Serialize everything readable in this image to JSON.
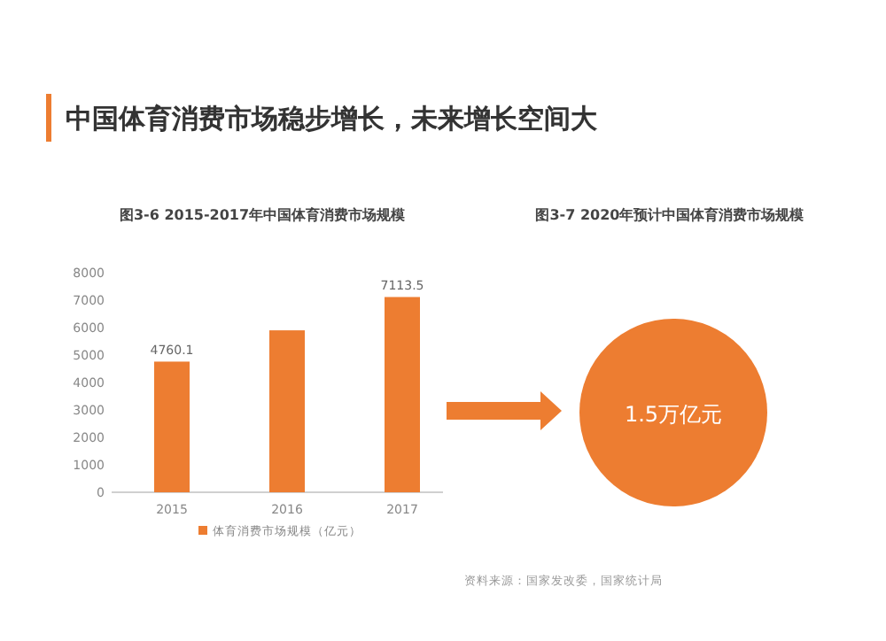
{
  "chart_data": [
    {
      "type": "bar",
      "title": "中国体育消费市场稳步增长，未来增长空间大",
      "subtitle": "图3-6 2015-2017年中国体育消费市场规模",
      "categories": [
        "2015",
        "2016",
        "2017"
      ],
      "series": [
        {
          "name": "体育消费市场规模（亿元）",
          "color": "#ed7d31",
          "values": [
            4760.1,
            5900,
            7113.5
          ],
          "value_labels": [
            "4760.1",
            null,
            "7113.5"
          ]
        }
      ],
      "ylim": [
        0,
        8000
      ],
      "yticks": [
        0,
        1000,
        2000,
        3000,
        4000,
        5000,
        6000,
        7000,
        8000
      ],
      "grid": false,
      "legend": "bottom"
    },
    {
      "type": "other",
      "title": "图3-7 2020年预计中国体育消费市场规模",
      "annotations": [
        "1.5万亿元",
        "资料来源：国家发改委，国家统计局"
      ]
    }
  ]
}
